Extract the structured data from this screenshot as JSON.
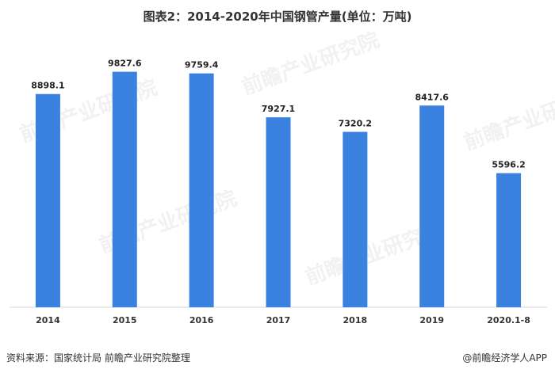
{
  "chart_data": {
    "type": "bar",
    "title": "图表2：2014-2020年中国钢管产量(单位：万吨)",
    "categories": [
      "2014",
      "2015",
      "2016",
      "2017",
      "2018",
      "2019",
      "2020.1-8"
    ],
    "values": [
      8898.1,
      9827.6,
      9759.4,
      7927.1,
      7320.2,
      8417.6,
      5596.2
    ],
    "value_labels": [
      "8898.1",
      "9827.6",
      "9759.4",
      "7927.1",
      "7320.2",
      "8417.6",
      "5596.2"
    ],
    "ylim": [
      0,
      11500
    ],
    "grid": false,
    "legend": "none",
    "bar_color": "#3b82e0"
  },
  "footer": {
    "source": "资料来源：国家统计局  前瞻产业研究院整理",
    "brand": "@前瞻经济学人APP"
  },
  "watermark": {
    "text": "前瞻产业研究院"
  }
}
